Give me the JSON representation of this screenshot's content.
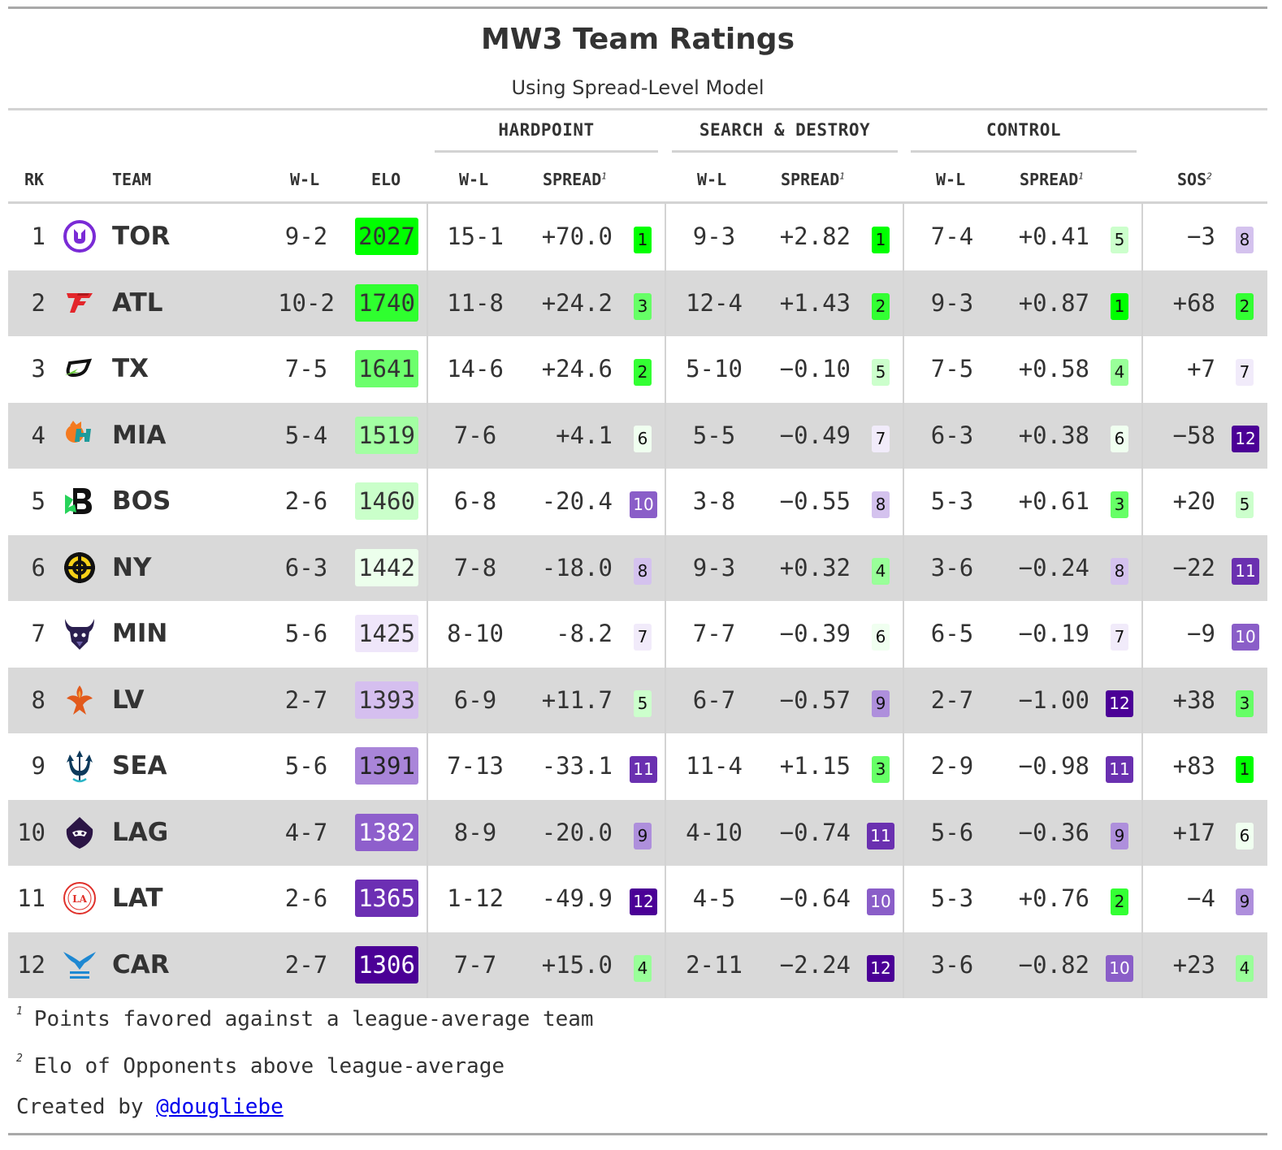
{
  "title": "MW3 Team Ratings",
  "subtitle": "Using Spread-Level Model",
  "spanners": {
    "hardpoint": "HARDPOINT",
    "snd": "SEARCH & DESTROY",
    "control": "CONTROL"
  },
  "columns": {
    "rk": "RK",
    "team": "TEAM",
    "wl": "W-L",
    "elo": "ELO",
    "hp_wl": "W-L",
    "hp_spread": "SPREAD",
    "snd_wl": "W-L",
    "snd_spread": "SPREAD",
    "ctl_wl": "W-L",
    "ctl_spread": "SPREAD",
    "sos": "SOS",
    "mark1": "1",
    "mark2": "2"
  },
  "rows": [
    {
      "rk": "1",
      "team": "TOR",
      "logo": "toronto-ultra-logo",
      "wl": "9-2",
      "elo": "2027",
      "elo_color": "#00ff00",
      "hp_wl": "15-1",
      "hp_spread": "+70.0",
      "hp_rank": "1",
      "snd_wl": "9-3",
      "snd_spread": "+2.82",
      "snd_rank": "1",
      "ctl_wl": "7-4",
      "ctl_spread": "+0.41",
      "ctl_rank": "5",
      "sos": "−3",
      "sos_rank": "8"
    },
    {
      "rk": "2",
      "team": "ATL",
      "logo": "atlanta-faze-logo",
      "wl": "10-2",
      "elo": "1740",
      "elo_color": "#2fff2f",
      "hp_wl": "11-8",
      "hp_spread": "+24.2",
      "hp_rank": "3",
      "snd_wl": "12-4",
      "snd_spread": "+1.43",
      "snd_rank": "2",
      "ctl_wl": "9-3",
      "ctl_spread": "+0.87",
      "ctl_rank": "1",
      "sos": "+68",
      "sos_rank": "2"
    },
    {
      "rk": "3",
      "team": "TX",
      "logo": "optic-texas-logo",
      "wl": "7-5",
      "elo": "1641",
      "elo_color": "#6cff6c",
      "hp_wl": "14-6",
      "hp_spread": "+24.6",
      "hp_rank": "2",
      "snd_wl": "5-10",
      "snd_spread": "−0.10",
      "snd_rank": "5",
      "ctl_wl": "7-5",
      "ctl_spread": "+0.58",
      "ctl_rank": "4",
      "sos": "+7",
      "sos_rank": "7"
    },
    {
      "rk": "4",
      "team": "MIA",
      "logo": "miami-heretics-logo",
      "wl": "5-4",
      "elo": "1519",
      "elo_color": "#a3ffa3",
      "hp_wl": "7-6",
      "hp_spread": "+4.1",
      "hp_rank": "6",
      "snd_wl": "5-5",
      "snd_spread": "−0.49",
      "snd_rank": "7",
      "ctl_wl": "6-3",
      "ctl_spread": "+0.38",
      "ctl_rank": "6",
      "sos": "−58",
      "sos_rank": "12"
    },
    {
      "rk": "5",
      "team": "BOS",
      "logo": "boston-breach-logo",
      "wl": "2-6",
      "elo": "1460",
      "elo_color": "#caffca",
      "hp_wl": "6-8",
      "hp_spread": "-20.4",
      "hp_rank": "10",
      "snd_wl": "3-8",
      "snd_spread": "−0.55",
      "snd_rank": "8",
      "ctl_wl": "5-3",
      "ctl_spread": "+0.61",
      "ctl_rank": "3",
      "sos": "+20",
      "sos_rank": "5"
    },
    {
      "rk": "6",
      "team": "NY",
      "logo": "new-york-subliners-logo",
      "wl": "6-3",
      "elo": "1442",
      "elo_color": "#ecffec",
      "hp_wl": "7-8",
      "hp_spread": "-18.0",
      "hp_rank": "8",
      "snd_wl": "9-3",
      "snd_spread": "+0.32",
      "snd_rank": "4",
      "ctl_wl": "3-6",
      "ctl_spread": "−0.24",
      "ctl_rank": "8",
      "sos": "−22",
      "sos_rank": "11"
    },
    {
      "rk": "7",
      "team": "MIN",
      "logo": "minnesota-rokkr-logo",
      "wl": "5-6",
      "elo": "1425",
      "elo_color": "#efe6fa",
      "hp_wl": "8-10",
      "hp_spread": "-8.2",
      "hp_rank": "7",
      "snd_wl": "7-7",
      "snd_spread": "−0.39",
      "snd_rank": "6",
      "ctl_wl": "6-5",
      "ctl_spread": "−0.19",
      "ctl_rank": "7",
      "sos": "−9",
      "sos_rank": "10"
    },
    {
      "rk": "8",
      "team": "LV",
      "logo": "las-vegas-falcons-logo",
      "wl": "2-7",
      "elo": "1393",
      "elo_color": "#d5bfef",
      "hp_wl": "6-9",
      "hp_spread": "+11.7",
      "hp_rank": "5",
      "snd_wl": "6-7",
      "snd_spread": "−0.57",
      "snd_rank": "9",
      "ctl_wl": "2-7",
      "ctl_spread": "−1.00",
      "ctl_rank": "12",
      "sos": "+38",
      "sos_rank": "3"
    },
    {
      "rk": "9",
      "team": "SEA",
      "logo": "seattle-surge-logo",
      "wl": "5-6",
      "elo": "1391",
      "elo_color": "#a985d9",
      "hp_wl": "7-13",
      "hp_spread": "-33.1",
      "hp_rank": "11",
      "snd_wl": "11-4",
      "snd_spread": "+1.15",
      "snd_rank": "3",
      "ctl_wl": "2-9",
      "ctl_spread": "−0.98",
      "ctl_rank": "11",
      "sos": "+83",
      "sos_rank": "1"
    },
    {
      "rk": "10",
      "team": "LAG",
      "logo": "los-angeles-guerrillas-logo",
      "wl": "4-7",
      "elo": "1382",
      "elo_color": "#8e5fcc",
      "hp_wl": "8-9",
      "hp_spread": "-20.0",
      "hp_rank": "9",
      "snd_wl": "4-10",
      "snd_spread": "−0.74",
      "snd_rank": "11",
      "ctl_wl": "5-6",
      "ctl_spread": "−0.36",
      "ctl_rank": "9",
      "sos": "+17",
      "sos_rank": "6"
    },
    {
      "rk": "11",
      "team": "LAT",
      "logo": "los-angeles-thieves-logo",
      "wl": "2-6",
      "elo": "1365",
      "elo_color": "#6c2fb3",
      "hp_wl": "1-12",
      "hp_spread": "-49.9",
      "hp_rank": "12",
      "snd_wl": "4-5",
      "snd_spread": "−0.64",
      "snd_rank": "10",
      "ctl_wl": "5-3",
      "ctl_spread": "+0.76",
      "ctl_rank": "2",
      "sos": "−4",
      "sos_rank": "9"
    },
    {
      "rk": "12",
      "team": "CAR",
      "logo": "carolina-royal-ravens-logo",
      "wl": "2-7",
      "elo": "1306",
      "elo_color": "#4b0096",
      "hp_wl": "7-7",
      "hp_spread": "+15.0",
      "hp_rank": "4",
      "snd_wl": "2-11",
      "snd_spread": "−2.24",
      "snd_rank": "12",
      "ctl_wl": "3-6",
      "ctl_spread": "−0.82",
      "ctl_rank": "10",
      "sos": "+23",
      "sos_rank": "4"
    }
  ],
  "rank_colors": {
    "1": "#00ff00",
    "2": "#33ff33",
    "3": "#66ff66",
    "4": "#99ff99",
    "5": "#ccffcc",
    "6": "#f0fff0",
    "7": "#f1ebfa",
    "8": "#d4c2ee",
    "9": "#ae8fdc",
    "10": "#8a5ec8",
    "11": "#6a30b0",
    "12": "#4b0096"
  },
  "footnotes": [
    {
      "mark": "1",
      "text": "Points favored against a league-average team"
    },
    {
      "mark": "2",
      "text": "Elo of Opponents above league-average"
    }
  ],
  "credit": {
    "prefix": "Created by ",
    "handle": "@dougliebe"
  }
}
